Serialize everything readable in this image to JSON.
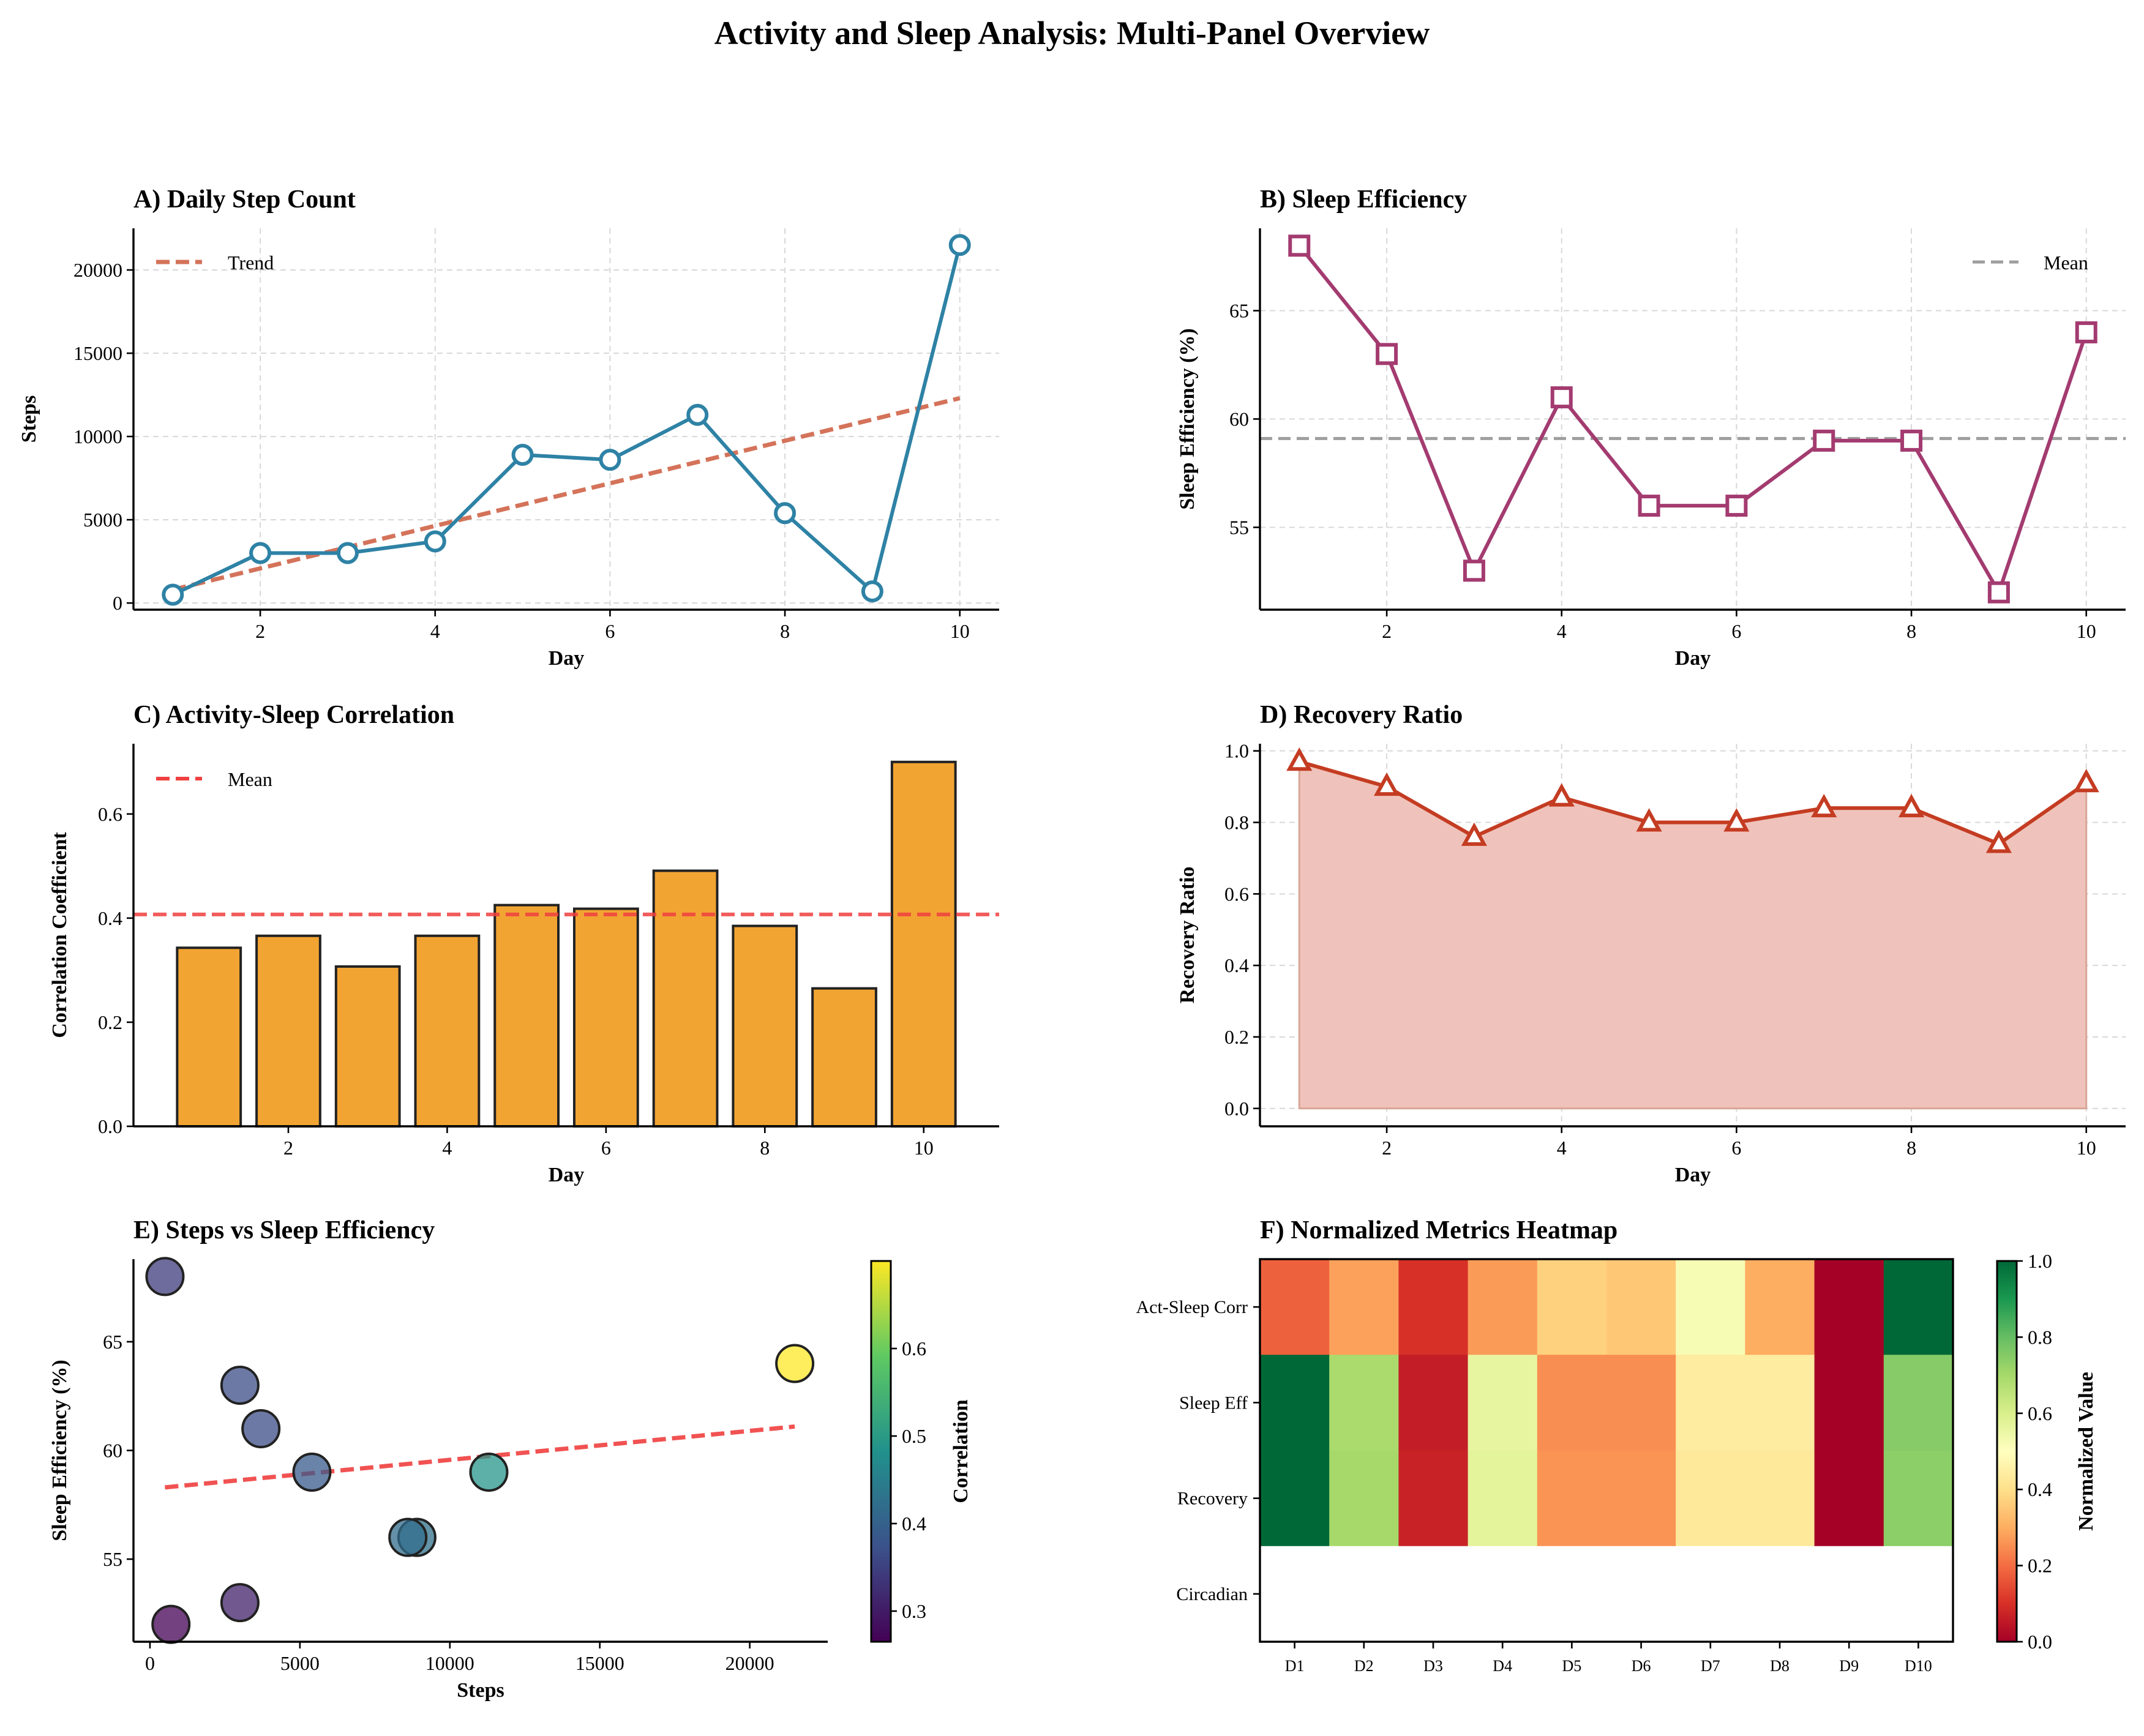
{
  "figure": {
    "title": "Activity and Sleep Analysis: Multi-Panel Overview"
  },
  "colors": {
    "steps_line": "#2e82a5",
    "trend": "#d4735a",
    "sleep_line": "#a33b70",
    "bar_fill": "#f2a433",
    "bar_edge": "#222222",
    "mean_red": "#f04040",
    "mean_gray": "#9e9e9e",
    "recovery_line": "#c43c22",
    "recovery_fill": "#efc3bb"
  },
  "chart_data": [
    {
      "id": "A",
      "type": "line",
      "title": "A) Daily Step Count",
      "xlabel": "Day",
      "ylabel": "Steps",
      "x": [
        1,
        2,
        3,
        4,
        5,
        6,
        7,
        8,
        9,
        10
      ],
      "xlim": [
        0.55,
        10.45
      ],
      "ylim": [
        -400,
        22500
      ],
      "xticks": [
        2,
        4,
        6,
        8,
        10
      ],
      "yticks": [
        0,
        5000,
        10000,
        15000,
        20000
      ],
      "series": [
        {
          "name": "",
          "values": [
            500,
            3000,
            3000,
            3700,
            8900,
            8600,
            11300,
            5400,
            700,
            21500
          ]
        }
      ],
      "trend": {
        "name": "Trend",
        "x": [
          1,
          10
        ],
        "y": [
          800,
          12300
        ]
      },
      "legend": "top-left",
      "grid": true
    },
    {
      "id": "B",
      "type": "line",
      "title": "B) Sleep Efficiency",
      "xlabel": "Day",
      "ylabel": "Sleep Efficiency (%)",
      "x": [
        1,
        2,
        3,
        4,
        5,
        6,
        7,
        8,
        9,
        10
      ],
      "xlim": [
        0.55,
        10.45
      ],
      "ylim": [
        51.2,
        68.8
      ],
      "xticks": [
        2,
        4,
        6,
        8,
        10
      ],
      "yticks": [
        55,
        60,
        65
      ],
      "series": [
        {
          "name": "",
          "values": [
            68,
            63,
            53,
            61,
            56,
            56,
            59,
            59,
            52,
            64
          ]
        }
      ],
      "mean": {
        "name": "Mean",
        "value": 59.1
      },
      "legend": "top-right",
      "grid": true
    },
    {
      "id": "C",
      "type": "bar",
      "title": "C) Activity-Sleep Correlation",
      "xlabel": "Day",
      "ylabel": "Correlation Coefficient",
      "x": [
        1,
        2,
        3,
        4,
        5,
        6,
        7,
        8,
        9,
        10
      ],
      "xlim": [
        0.05,
        10.95
      ],
      "ylim": [
        0,
        0.735
      ],
      "xticks": [
        2,
        4,
        6,
        8,
        10
      ],
      "yticks": [
        0.0,
        0.2,
        0.4,
        0.6
      ],
      "series": [
        {
          "name": "",
          "values": [
            0.343,
            0.366,
            0.307,
            0.366,
            0.425,
            0.418,
            0.491,
            0.385,
            0.265,
            0.7
          ]
        }
      ],
      "mean": {
        "name": "Mean",
        "value": 0.407
      },
      "legend": "top-left",
      "grid": false
    },
    {
      "id": "D",
      "type": "area",
      "title": "D) Recovery Ratio",
      "xlabel": "Day",
      "ylabel": "Recovery Ratio",
      "x": [
        1,
        2,
        3,
        4,
        5,
        6,
        7,
        8,
        9,
        10
      ],
      "xlim": [
        0.55,
        10.45
      ],
      "ylim": [
        -0.05,
        1.02
      ],
      "xticks": [
        2,
        4,
        6,
        8,
        10
      ],
      "yticks": [
        0.0,
        0.2,
        0.4,
        0.6,
        0.8,
        1.0
      ],
      "series": [
        {
          "name": "",
          "values": [
            0.97,
            0.9,
            0.76,
            0.87,
            0.8,
            0.8,
            0.84,
            0.84,
            0.74,
            0.91
          ]
        }
      ],
      "grid": true
    },
    {
      "id": "E",
      "type": "scatter",
      "title": "E) Steps vs Sleep Efficiency",
      "xlabel": "Steps",
      "ylabel": "Sleep Efficiency (%)",
      "xlim": [
        -550,
        22600
      ],
      "ylim": [
        51.2,
        68.8
      ],
      "xticks": [
        0,
        5000,
        10000,
        15000,
        20000
      ],
      "yticks": [
        55,
        60,
        65
      ],
      "points": [
        {
          "x": 500,
          "y": 68,
          "c": 0.343
        },
        {
          "x": 3000,
          "y": 63,
          "c": 0.366
        },
        {
          "x": 3000,
          "y": 53,
          "c": 0.307
        },
        {
          "x": 3700,
          "y": 61,
          "c": 0.366
        },
        {
          "x": 8900,
          "y": 56,
          "c": 0.425
        },
        {
          "x": 8600,
          "y": 56,
          "c": 0.418
        },
        {
          "x": 11300,
          "y": 59,
          "c": 0.491
        },
        {
          "x": 5400,
          "y": 59,
          "c": 0.385
        },
        {
          "x": 700,
          "y": 52,
          "c": 0.265
        },
        {
          "x": 21500,
          "y": 64,
          "c": 0.7
        }
      ],
      "fit": {
        "x": [
          500,
          21500
        ],
        "y": [
          58.3,
          61.1
        ]
      },
      "colorbar": {
        "label": "Correlation",
        "range": [
          0.265,
          0.7
        ],
        "ticks": [
          0.3,
          0.4,
          0.5,
          0.6
        ],
        "tick_labels": [
          "0.3",
          "0.4",
          "0.5",
          "0.6"
        ],
        "colormap": "viridis"
      },
      "grid": false
    },
    {
      "id": "F",
      "type": "heatmap",
      "title": "F) Normalized Metrics Heatmap",
      "rows": [
        "Act-Sleep Corr",
        "Sleep Eff",
        "Recovery",
        "Circadian"
      ],
      "cols": [
        "D1",
        "D2",
        "D3",
        "D4",
        "D5",
        "D6",
        "D7",
        "D8",
        "D9",
        "D10"
      ],
      "values": [
        [
          0.18,
          0.28,
          0.1,
          0.27,
          0.37,
          0.35,
          0.52,
          0.3,
          0.0,
          1.0
        ],
        [
          1.0,
          0.69,
          0.06,
          0.56,
          0.25,
          0.25,
          0.44,
          0.44,
          0.0,
          0.75
        ],
        [
          1.0,
          0.7,
          0.07,
          0.57,
          0.26,
          0.26,
          0.43,
          0.43,
          0.0,
          0.74
        ],
        [
          null,
          null,
          null,
          null,
          null,
          null,
          null,
          null,
          null,
          null
        ]
      ],
      "colorbar": {
        "label": "Normalized Value",
        "range": [
          0,
          1
        ],
        "ticks": [
          0.0,
          0.2,
          0.4,
          0.6,
          0.8,
          1.0
        ],
        "tick_labels": [
          "0.0",
          "0.2",
          "0.4",
          "0.6",
          "0.8",
          "1.0"
        ],
        "colormap": "RdYlGn"
      }
    }
  ]
}
